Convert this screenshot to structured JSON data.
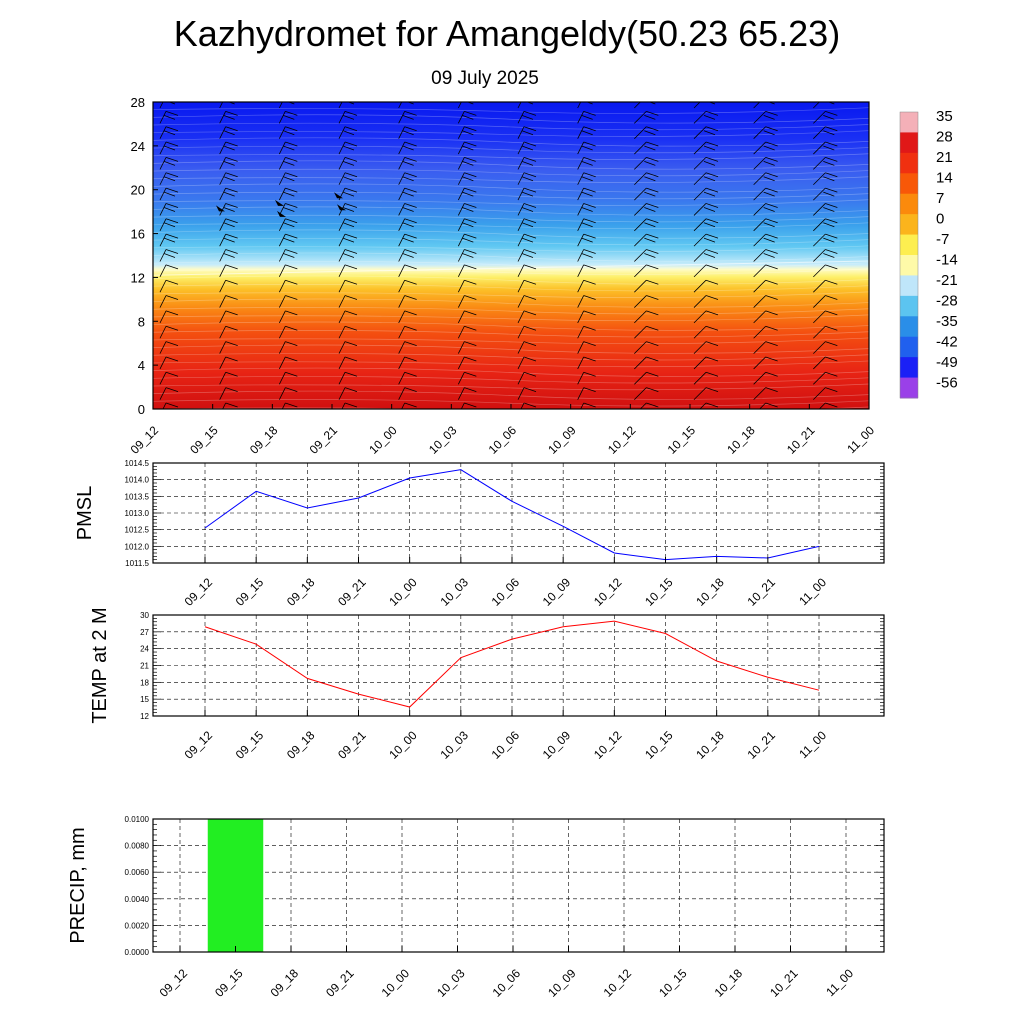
{
  "header": {
    "title": "Kazhydromet for Amangeldy(50.23 65.23)",
    "date": "09 July 2025"
  },
  "chart_data": [
    {
      "type": "heatmap",
      "title": "",
      "xlabel": "",
      "ylabel": "",
      "x": [
        "09_12",
        "09_15",
        "09_18",
        "09_21",
        "10_00",
        "10_03",
        "10_06",
        "10_09",
        "10_12",
        "10_15",
        "10_18",
        "10_21",
        "11_00"
      ],
      "yticks": [
        0,
        4,
        8,
        12,
        16,
        20,
        24,
        28
      ],
      "ylim": [
        0,
        28
      ],
      "colorbar": {
        "labels": [
          "35",
          "28",
          "21",
          "14",
          "7",
          "0",
          "-7",
          "-14",
          "-21",
          "-28",
          "-35",
          "-42",
          "-49",
          "-56"
        ],
        "colors": [
          "#f4b0b8",
          "#e01818",
          "#f03010",
          "#f85808",
          "#fb8a0c",
          "#fbb41c",
          "#fdee50",
          "#fefaa8",
          "#bfe6fa",
          "#5cc4f0",
          "#2a8ee8",
          "#2060ee",
          "#1a20f6",
          "#9a40e8"
        ]
      },
      "levels": {
        "freezing_level_start": 12.2,
        "freezing_level_end": 13.5
      }
    },
    {
      "type": "line",
      "ylabel": "PMSL",
      "x": [
        "09_12",
        "09_15",
        "09_18",
        "09_21",
        "10_00",
        "10_03",
        "10_06",
        "10_09",
        "10_12",
        "10_15",
        "10_18",
        "10_21",
        "11_00"
      ],
      "yticks": [
        "1011.5",
        "1012.0",
        "1012.5",
        "1013.0",
        "1013.5",
        "1014.0",
        "1014.5"
      ],
      "ylim": [
        1011.5,
        1014.5
      ],
      "series": [
        {
          "color": "#0000ff",
          "values": [
            1012.55,
            1013.65,
            1013.15,
            1013.45,
            1014.05,
            1014.3,
            1013.35,
            1012.6,
            1011.8,
            1011.6,
            1011.7,
            1011.65,
            1012.0
          ]
        }
      ]
    },
    {
      "type": "line",
      "ylabel": "TEMP at 2 M",
      "x": [
        "09_12",
        "09_15",
        "09_18",
        "09_21",
        "10_00",
        "10_03",
        "10_06",
        "10_09",
        "10_12",
        "10_15",
        "10_18",
        "10_21",
        "11_00"
      ],
      "yticks": [
        "12",
        "15",
        "18",
        "21",
        "24",
        "27",
        "30"
      ],
      "ylim": [
        12,
        30
      ],
      "series": [
        {
          "color": "#ff0000",
          "values": [
            27.9,
            24.8,
            18.7,
            15.9,
            13.6,
            22.4,
            25.7,
            27.9,
            28.9,
            26.7,
            21.8,
            18.9,
            16.6
          ]
        }
      ]
    },
    {
      "type": "bar",
      "ylabel": "PRECIP, mm",
      "x": [
        "09_12",
        "09_15",
        "09_18",
        "09_21",
        "10_00",
        "10_03",
        "10_06",
        "10_09",
        "10_12",
        "10_15",
        "10_18",
        "10_21",
        "11_00"
      ],
      "yticks": [
        "0.0000",
        "0.0020",
        "0.0040",
        "0.0060",
        "0.0080",
        "0.0100"
      ],
      "ylim": [
        0,
        0.01
      ],
      "bar_color": "#22ee22",
      "values": [
        0,
        0.01,
        0,
        0,
        0,
        0,
        0,
        0,
        0,
        0,
        0,
        0,
        0
      ]
    }
  ]
}
